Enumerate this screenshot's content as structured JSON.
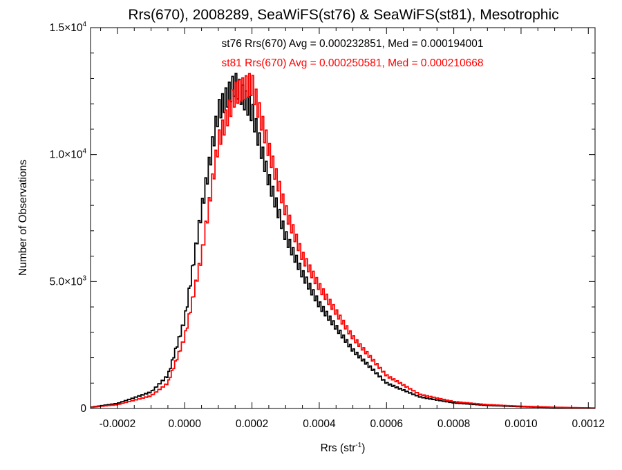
{
  "chart_data": {
    "type": "histogram",
    "title": "Rrs(670), 2008289, SeaWiFS(st76) & SeaWiFS(st81), Mesotrophic",
    "xlabel_main": "Rrs (str",
    "xlabel_sup": "-1",
    "xlabel_close": ")",
    "ylabel": "Number of Observations",
    "xlim": [
      -0.00028,
      0.00122
    ],
    "ylim": [
      0,
      15000
    ],
    "grid": false,
    "x_ticks": [
      {
        "value": -0.0002,
        "label": "-0.0002"
      },
      {
        "value": 0.0,
        "label": "0.0000"
      },
      {
        "value": 0.0002,
        "label": "0.0002"
      },
      {
        "value": 0.0004,
        "label": "0.0004"
      },
      {
        "value": 0.0006,
        "label": "0.0006"
      },
      {
        "value": 0.0008,
        "label": "0.0008"
      },
      {
        "value": 0.001,
        "label": "0.0010"
      },
      {
        "value": 0.0012,
        "label": "0.0012"
      }
    ],
    "y_ticks": [
      {
        "value": 0,
        "mantissa": "0",
        "exp": ""
      },
      {
        "value": 5000,
        "mantissa": "5.0×10",
        "exp": "3"
      },
      {
        "value": 10000,
        "mantissa": "1.0×10",
        "exp": "4"
      },
      {
        "value": 15000,
        "mantissa": "1.5×10",
        "exp": "4"
      }
    ],
    "x_minor_step": 5e-05,
    "y_minor_step": 1000,
    "legend_placement": "top-center",
    "bin_width": 5e-06,
    "shape_points_x": [
      -0.00028,
      -0.0002,
      -0.0001,
      -5e-05,
      0.0,
      5e-05,
      0.0001,
      0.00015,
      0.0002,
      0.00025,
      0.0003,
      0.00035,
      0.0004,
      0.0005,
      0.0006,
      0.0007,
      0.0008,
      0.0009,
      0.001,
      0.0011,
      0.00122
    ],
    "series": [
      {
        "name": "st76",
        "color": "#000000",
        "annotation": "st76 Rrs(670) Avg = 0.000232851, Med = 0.000194001",
        "shape_points_y": [
          50,
          200,
          650,
          1300,
          3500,
          7800,
          11700,
          12800,
          11700,
          9000,
          6800,
          5300,
          4100,
          2300,
          1000,
          450,
          220,
          120,
          70,
          40,
          15
        ],
        "oscillation": 450
      },
      {
        "name": "st81",
        "color": "#ff0000",
        "annotation": "st81 Rrs(670) Avg = 0.000250581, Med = 0.000210668",
        "shape_points_y": [
          40,
          150,
          500,
          1000,
          2800,
          6000,
          10500,
          12400,
          12800,
          10200,
          7800,
          6000,
          4800,
          2800,
          1300,
          550,
          270,
          150,
          90,
          50,
          20
        ],
        "oscillation": 450
      }
    ]
  }
}
